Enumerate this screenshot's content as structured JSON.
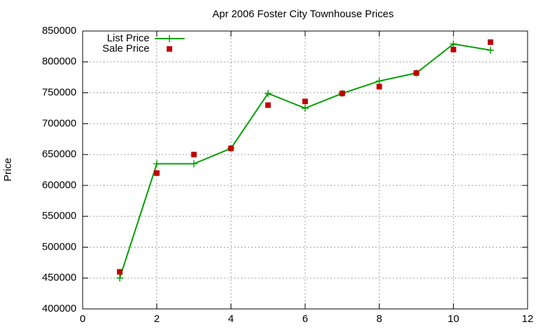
{
  "chart_data": {
    "type": "line",
    "title": "Apr 2006 Foster City Townhouse Prices",
    "y_label": "Price",
    "x": [
      1,
      2,
      3,
      4,
      5,
      6,
      7,
      8,
      9,
      10,
      11
    ],
    "series": [
      {
        "name": "List Price",
        "color": "#00a000",
        "marker": "plus",
        "line": true,
        "values": [
          450000,
          635000,
          635000,
          660000,
          749000,
          725000,
          749000,
          769000,
          782000,
          829000,
          819000
        ]
      },
      {
        "name": "Sale Price",
        "color": "#c00000",
        "marker": "square",
        "line": false,
        "values": [
          460000,
          620000,
          650000,
          660000,
          730000,
          736000,
          749000,
          760000,
          782000,
          820000,
          832000
        ]
      }
    ],
    "xlim": [
      0,
      12
    ],
    "xticks": [
      0,
      2,
      4,
      6,
      8,
      10,
      12
    ],
    "ylim": [
      400000,
      850000
    ],
    "yticks": [
      400000,
      450000,
      500000,
      550000,
      600000,
      650000,
      700000,
      750000,
      800000,
      850000
    ],
    "grid": true,
    "legend": "top-left"
  }
}
